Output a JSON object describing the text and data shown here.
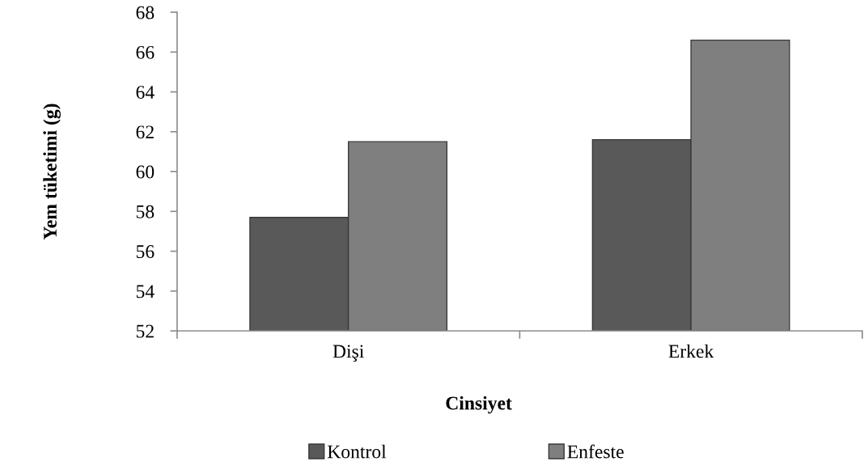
{
  "chart_data": {
    "type": "bar",
    "xlabel": "Cinsiyet",
    "ylabel": "Yem tüketimi (g)",
    "categories": [
      "Dişi",
      "Erkek"
    ],
    "series": [
      {
        "name": "Kontrol",
        "color": "#595959",
        "values": [
          57.7,
          61.6
        ]
      },
      {
        "name": "Enfeste",
        "color": "#7f7f7f",
        "values": [
          61.5,
          66.6
        ]
      }
    ],
    "ylim": [
      52,
      68
    ],
    "yticks": [
      52,
      54,
      56,
      58,
      60,
      62,
      64,
      66,
      68
    ],
    "grid": false,
    "legend": "bottom"
  }
}
